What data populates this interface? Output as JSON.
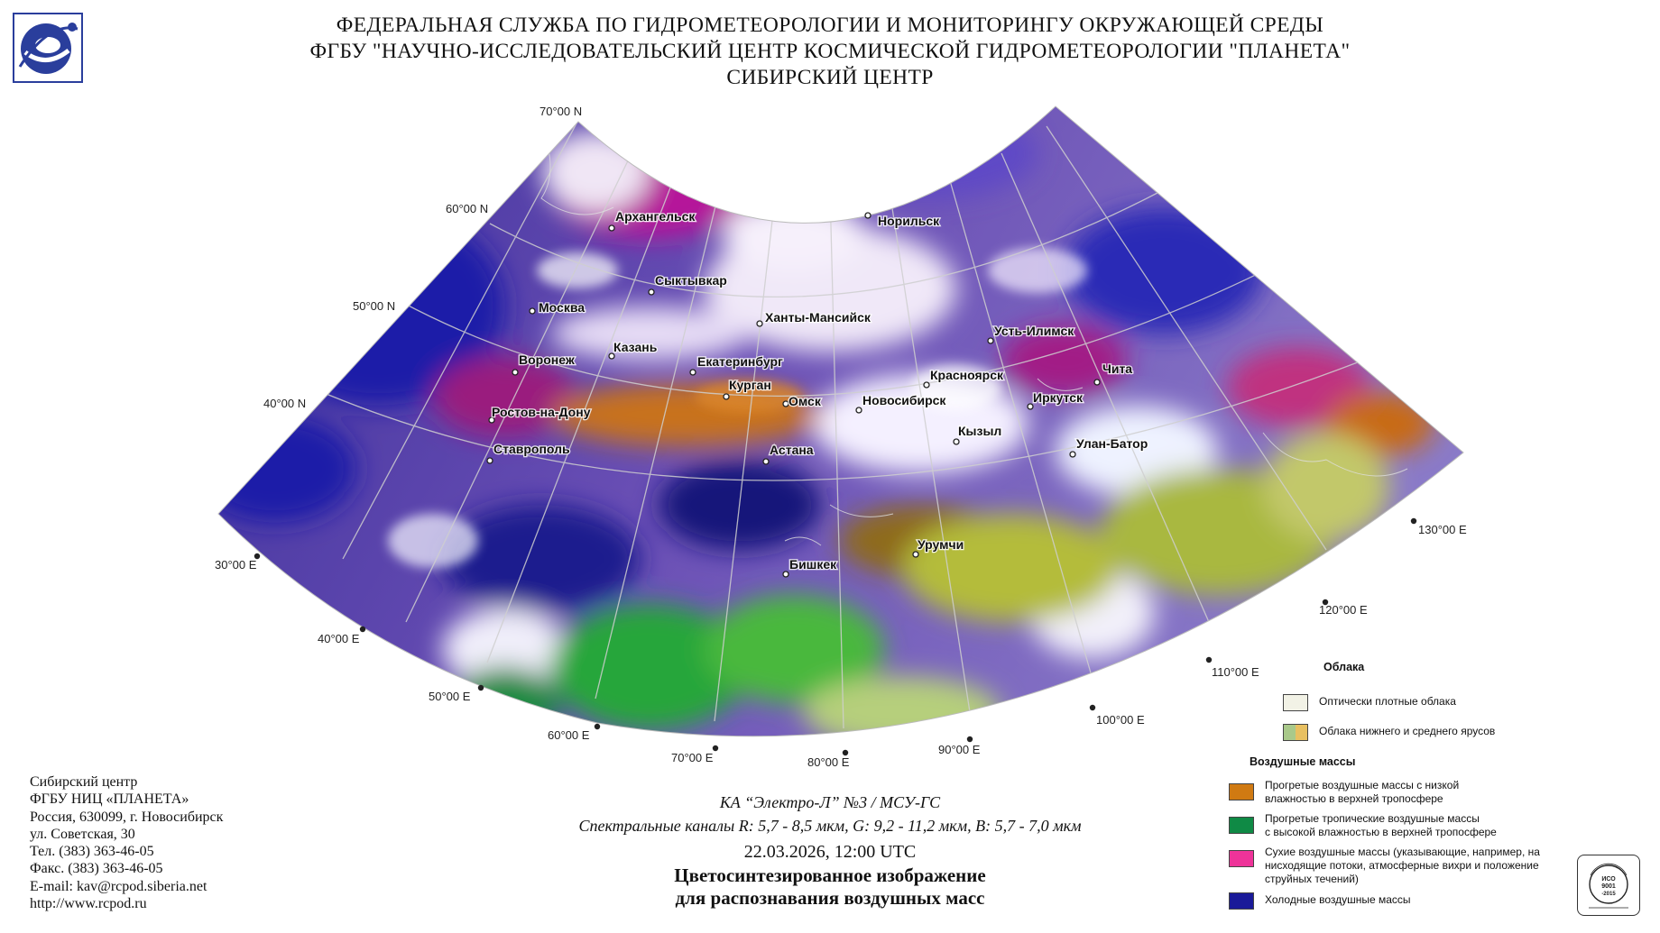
{
  "header": {
    "line1": "ФЕДЕРАЛЬНАЯ СЛУЖБА ПО ГИДРОМЕТЕОРОЛОГИИ И МОНИТОРИНГУ ОКРУЖАЮЩЕЙ СРЕДЫ",
    "line2": "ФГБУ \"НАУЧНО-ИССЛЕДОВАТЕЛЬСКИЙ ЦЕНТР КОСМИЧЕСКОЙ ГИДРОМЕТЕОРОЛОГИИ \"ПЛАНЕТА\"",
    "line3": "СИБИРСКИЙ ЦЕНТР"
  },
  "latitude_labels": [
    "70°00 N",
    "60°00 N",
    "50°00 N",
    "40°00 N"
  ],
  "longitude_labels": [
    "30°00 E",
    "40°00 E",
    "50°00 E",
    "60°00 E",
    "70°00 E",
    "80°00 E",
    "90°00 E",
    "100°00 E",
    "110°00 E",
    "120°00 E",
    "130°00 E"
  ],
  "cities": [
    "Архангельск",
    "Норильск",
    "Сыктывкар",
    "Москва",
    "Ханты-Мансийск",
    "Казань",
    "Усть-Илимск",
    "Воронеж",
    "Екатеринбург",
    "Красноярск",
    "Чита",
    "Курган",
    "Омск",
    "Новосибирск",
    "Иркутск",
    "Ростов-на-Дону",
    "Кызыл",
    "Улан-Батор",
    "Ставрополь",
    "Астана",
    "Урумчи",
    "Бишкек"
  ],
  "contact": {
    "line1": "Сибирский центр",
    "line2": "ФГБУ НИЦ «ПЛАНЕТА»",
    "line3": "Россия, 630099, г. Новосибирск",
    "line4": "ул. Советская, 30",
    "line5": "Тел. (383) 363-46-05",
    "line6": "Факс. (383) 363-46-05",
    "line7": "E-mail: kav@rcpod.siberia.net",
    "line8": "http://www.rcpod.ru"
  },
  "caption": {
    "satellite": "КА “Электро-Л” №3 / МСУ-ГС",
    "channels": "Спектральные каналы R: 5,7 - 8,5 мкм, G: 9,2 - 11,2 мкм, B: 5,7 - 7,0 мкм",
    "datetime": "22.03.2026, 12:00 UTC",
    "title1": "Цветосинтезированное изображение",
    "title2": "для распознавания воздушных масс"
  },
  "legend": {
    "clouds_heading": "Облака",
    "dense_clouds": "Оптически плотные облака",
    "low_mid_clouds": "Облака нижнего и среднего ярусов",
    "airmass_heading": "Воздушные массы",
    "warm_dry_1": "Прогретые воздушные массы с низкой",
    "warm_dry_2": "влажностью в верхней тропосфере",
    "warm_moist_1": "Прогретые тропичеcкие воздушные массы",
    "warm_moist_2": "с высокой влажностью в верхней тропосфере",
    "dry_1": "Сухие воздушные массы (указывающие, например, на",
    "dry_2": "нисходящие потоки, атмосферные вихри и положение",
    "dry_3": "струйных течений)",
    "cold": "Холодные воздушные массы"
  },
  "colors": {
    "dense_clouds": "#f2f2e6",
    "low_mid_left": "#a9c98a",
    "low_mid_right": "#e8c061",
    "warm_dry": "#d07a12",
    "warm_moist": "#0f8a45",
    "dry": "#ee3399",
    "cold": "#1a1a99"
  }
}
